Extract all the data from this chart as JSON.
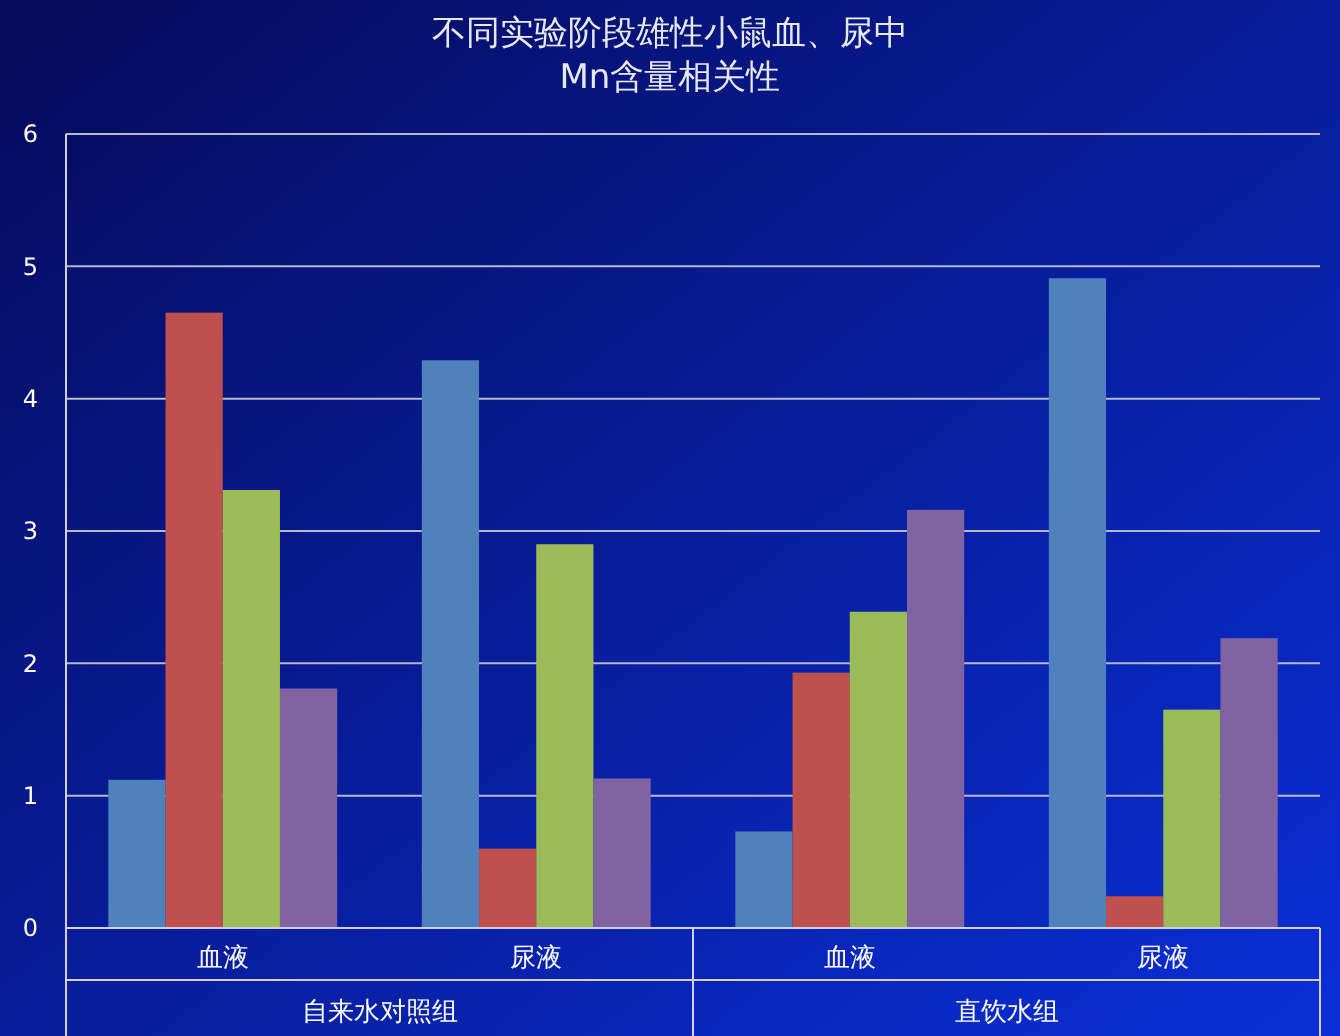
{
  "chart_data": {
    "type": "bar",
    "title": "不同实验阶段雄性小鼠血、尿中\nMn含量相关性",
    "categories": [
      "血液",
      "尿液",
      "血液",
      "尿液"
    ],
    "series": [
      {
        "color": "#4f81bd",
        "values": [
          1.12,
          4.29,
          0.73,
          4.91
        ]
      },
      {
        "color": "#c0504d",
        "values": [
          4.65,
          0.6,
          1.93,
          0.24
        ]
      },
      {
        "color": "#9bbb59",
        "values": [
          3.31,
          2.9,
          2.39,
          1.65
        ]
      },
      {
        "color": "#8064a2",
        "values": [
          1.81,
          1.13,
          3.16,
          2.19
        ]
      }
    ],
    "ylim": [
      0,
      6
    ],
    "yticks": [
      0,
      1,
      2,
      3,
      4,
      5,
      6
    ],
    "grid": "y",
    "annotations": [
      "自来水对照组",
      "直饮水组"
    ]
  }
}
